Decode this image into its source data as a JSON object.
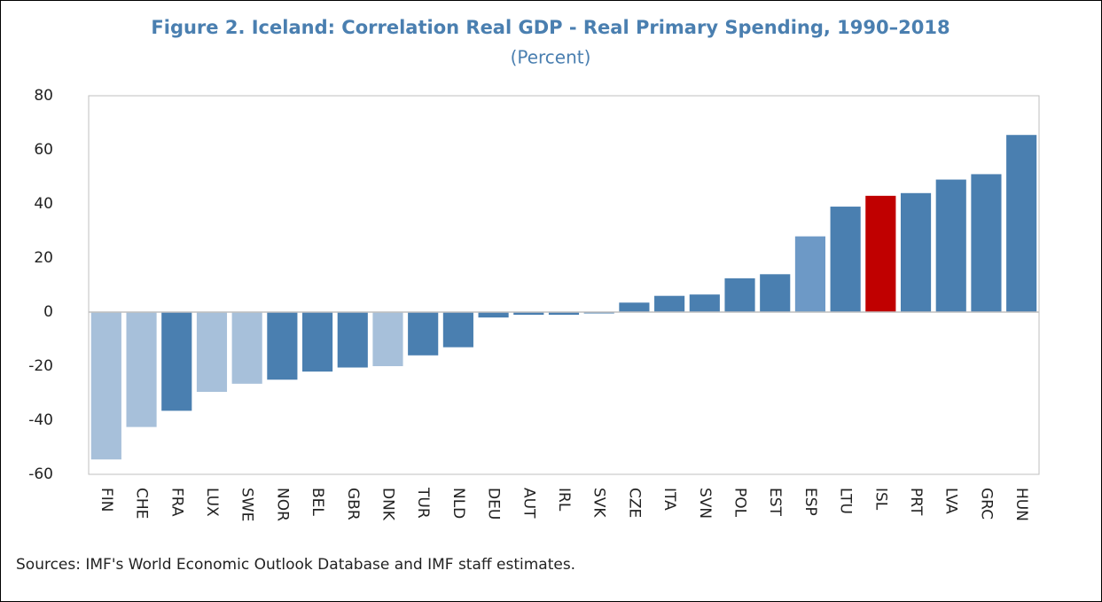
{
  "chart_data": {
    "type": "bar",
    "title": "Figure 2. Iceland: Correlation Real GDP - Real Primary Spending, 1990–2018",
    "subtitle": "(Percent)",
    "categories": [
      "FIN",
      "CHE",
      "FRA",
      "LUX",
      "SWE",
      "NOR",
      "BEL",
      "GBR",
      "DNK",
      "TUR",
      "NLD",
      "DEU",
      "AUT",
      "IRL",
      "SVK",
      "CZE",
      "ITA",
      "SVN",
      "POL",
      "EST",
      "ESP",
      "LTU",
      "ISL",
      "PRT",
      "LVA",
      "GRC",
      "HUN"
    ],
    "values": [
      -54.5,
      -42.5,
      -36.5,
      -29.5,
      -26.5,
      -25,
      -22,
      -20.5,
      -20,
      -16,
      -13,
      -2,
      -1,
      -1,
      -0.5,
      3.5,
      6,
      6.5,
      12.5,
      14,
      28,
      39,
      43,
      44,
      49,
      51,
      65.5
    ],
    "colors": [
      "#a7c0da",
      "#a7c0da",
      "#4a7fb0",
      "#a7c0da",
      "#a7c0da",
      "#4a7fb0",
      "#4a7fb0",
      "#4a7fb0",
      "#a7c0da",
      "#4a7fb0",
      "#4a7fb0",
      "#4a7fb0",
      "#4a7fb0",
      "#4a7fb0",
      "#4a7fb0",
      "#4a7fb0",
      "#4a7fb0",
      "#4a7fb0",
      "#4a7fb0",
      "#4a7fb0",
      "#6d99c6",
      "#4a7fb0",
      "#c00000",
      "#4a7fb0",
      "#4a7fb0",
      "#4a7fb0",
      "#4a7fb0"
    ],
    "ylim": [
      -60,
      80
    ],
    "yticks": [
      -60,
      -40,
      -20,
      0,
      20,
      40,
      60,
      80
    ],
    "source": "Sources: IMF's World Economic Outlook Database and IMF staff estimates."
  }
}
